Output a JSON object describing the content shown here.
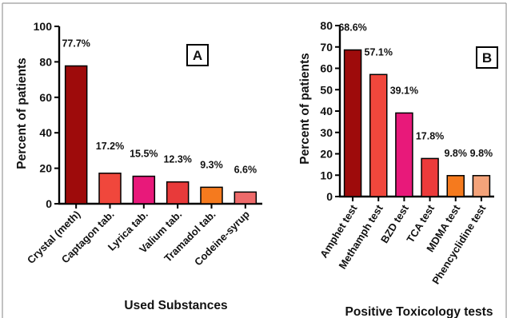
{
  "chart_data": [
    {
      "type": "bar",
      "panel_label": "A",
      "categories": [
        "Crystal (meth)",
        "Captagon tab.",
        "Lyrica tab.",
        "Valium tab.",
        "Tramadol tab.",
        "Codeine-syrup"
      ],
      "values": [
        77.7,
        17.2,
        15.5,
        12.3,
        9.3,
        6.6
      ],
      "data_labels": [
        "77.7%",
        "17.2%",
        "15.5%",
        "12.3%",
        "9.3%",
        "6.6%"
      ],
      "colors": [
        "#9e0b0b",
        "#f0473c",
        "#e8197a",
        "#e83a3a",
        "#f57a1e",
        "#ee6a6a"
      ],
      "xlabel": "Used Substances",
      "ylabel": "Percent of patients",
      "ylim": [
        0,
        100
      ],
      "yticks": [
        "0",
        "20",
        "40",
        "60",
        "80",
        "100"
      ],
      "grid": false
    },
    {
      "type": "bar",
      "panel_label": "B",
      "categories": [
        "Amphet test",
        "Methamph test",
        "BZD test",
        "TCA test",
        "MDMA test",
        "Phencyclidine test"
      ],
      "values": [
        68.6,
        57.1,
        39.1,
        17.8,
        9.8,
        9.8
      ],
      "data_labels": [
        "68.6%",
        "57.1%",
        "39.1%",
        "17.8%",
        "9.8%",
        "9.8%"
      ],
      "colors": [
        "#9e0b0b",
        "#f0473c",
        "#e8197a",
        "#ec3b3b",
        "#f57a1e",
        "#f4a37a"
      ],
      "xlabel": "Positive Toxicology tests",
      "ylabel": "Percent of patients",
      "ylim": [
        0,
        80
      ],
      "yticks": [
        "0",
        "10",
        "20",
        "30",
        "40",
        "50",
        "60",
        "70",
        "80"
      ],
      "grid": false
    }
  ]
}
